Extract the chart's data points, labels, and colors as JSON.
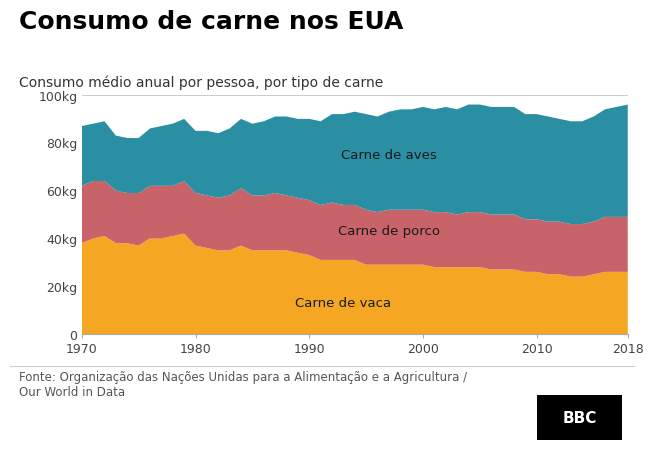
{
  "title": "Consumo de carne nos EUA",
  "subtitle": "Consumo médio anual por pessoa, por tipo de carne",
  "source": "Fonte: Organização das Nações Unidas para a Alimentação e a Agricultura /\nOur World in Data",
  "bbc_logo": "BBC",
  "colors": {
    "vaca": "#F5A623",
    "porco": "#C9636A",
    "aves": "#2B8FA3"
  },
  "years": [
    1970,
    1971,
    1972,
    1973,
    1974,
    1975,
    1976,
    1977,
    1978,
    1979,
    1980,
    1981,
    1982,
    1983,
    1984,
    1985,
    1986,
    1987,
    1988,
    1989,
    1990,
    1991,
    1992,
    1993,
    1994,
    1995,
    1996,
    1997,
    1998,
    1999,
    2000,
    2001,
    2002,
    2003,
    2004,
    2005,
    2006,
    2007,
    2008,
    2009,
    2010,
    2011,
    2012,
    2013,
    2014,
    2015,
    2016,
    2017,
    2018
  ],
  "vaca": [
    38,
    40,
    41,
    38,
    38,
    37,
    40,
    40,
    41,
    42,
    37,
    36,
    35,
    35,
    37,
    35,
    35,
    35,
    35,
    34,
    33,
    31,
    31,
    31,
    31,
    29,
    29,
    29,
    29,
    29,
    29,
    28,
    28,
    28,
    28,
    28,
    27,
    27,
    27,
    26,
    26,
    25,
    25,
    24,
    24,
    25,
    26,
    26,
    26
  ],
  "porco": [
    24,
    24,
    23,
    22,
    21,
    22,
    22,
    22,
    21,
    22,
    22,
    22,
    22,
    23,
    24,
    23,
    23,
    24,
    23,
    23,
    23,
    23,
    24,
    23,
    23,
    23,
    22,
    23,
    23,
    23,
    23,
    23,
    23,
    22,
    23,
    23,
    23,
    23,
    23,
    22,
    22,
    22,
    22,
    22,
    22,
    22,
    23,
    23,
    23
  ],
  "aves": [
    25,
    24,
    25,
    23,
    23,
    23,
    24,
    25,
    26,
    26,
    26,
    27,
    27,
    28,
    29,
    30,
    31,
    32,
    33,
    33,
    34,
    35,
    37,
    38,
    39,
    40,
    40,
    41,
    42,
    42,
    43,
    43,
    44,
    44,
    45,
    45,
    45,
    45,
    45,
    44,
    44,
    44,
    43,
    43,
    43,
    44,
    45,
    46,
    47
  ],
  "ylim": [
    0,
    100
  ],
  "yticks": [
    0,
    20,
    40,
    60,
    80,
    100
  ],
  "ytick_labels": [
    "0",
    "20kg",
    "40kg",
    "60kg",
    "80kg",
    "100kg"
  ],
  "xticks": [
    1970,
    1980,
    1990,
    2000,
    2010,
    2018
  ],
  "label_vaca": "Carne de vaca",
  "label_porco": "Carne de porco",
  "label_aves": "Carne de aves",
  "bg_color": "#FFFFFF",
  "grid_color": "#CCCCCC",
  "title_fontsize": 18,
  "subtitle_fontsize": 10,
  "axis_fontsize": 9,
  "label_fontsize": 9.5,
  "source_fontsize": 8.5
}
